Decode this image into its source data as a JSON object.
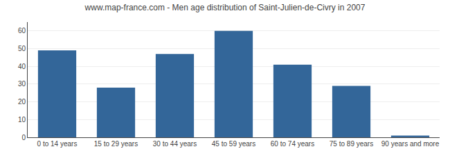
{
  "chart_data": {
    "type": "bar",
    "title": "www.map-france.com - Men age distribution of Saint-Julien-de-Civry in 2007",
    "categories": [
      "0 to 14 years",
      "15 to 29 years",
      "30 to 44 years",
      "45 to 59 years",
      "60 to 74 years",
      "75 to 89 years",
      "90 years and more"
    ],
    "values": [
      49,
      28,
      47,
      60,
      41,
      29,
      1
    ],
    "color": "#336699",
    "ylim": [
      0,
      65
    ],
    "yticks": [
      0,
      10,
      20,
      30,
      40,
      50,
      60
    ],
    "grid": true
  }
}
